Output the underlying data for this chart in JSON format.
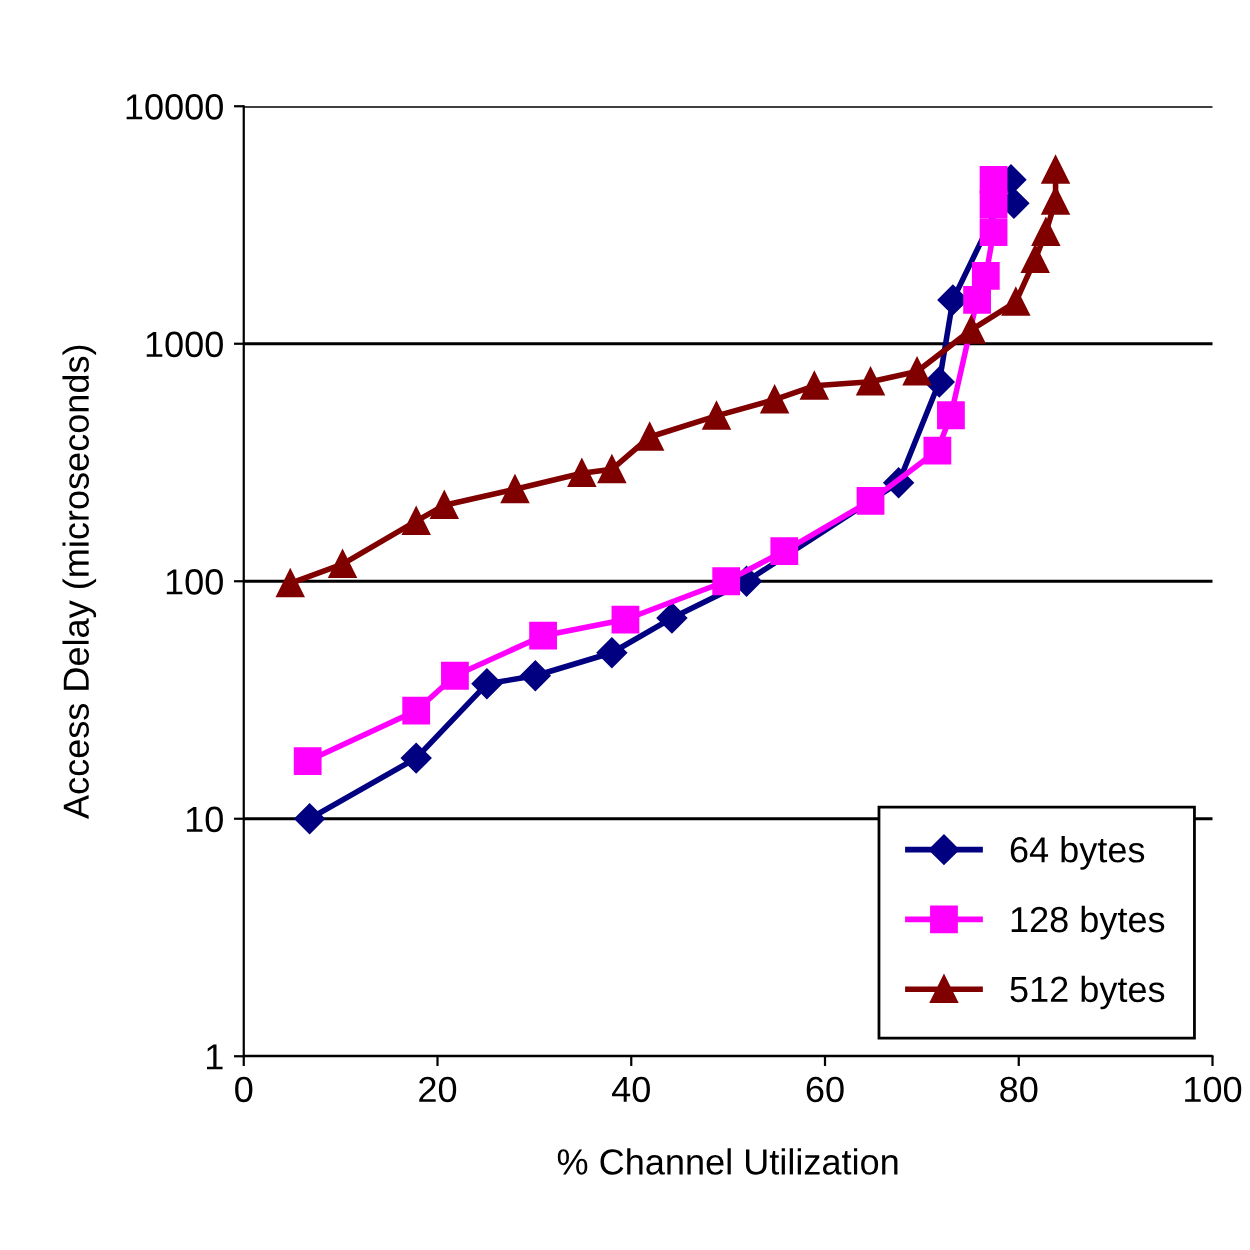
{
  "chart_data": {
    "type": "line",
    "xlabel": "% Channel Utilization",
    "ylabel": "Access Delay (microseconds)",
    "log": "y",
    "xlim": [
      0,
      100
    ],
    "xticks": [
      0,
      20,
      40,
      60,
      80,
      100
    ],
    "ylim": [
      1,
      10000
    ],
    "yticks": [
      1,
      10,
      100,
      1000,
      10000
    ],
    "grid": "y",
    "legend": "bottom right",
    "line_style": "solid",
    "series": [
      {
        "name": "64 bytes",
        "color": "#000080",
        "marker": "diamond",
        "x": [
          6.8,
          17.8,
          25.1,
          30.1,
          38,
          44.2,
          51.9,
          67.6,
          71.8,
          73.2,
          79.2,
          79.5
        ],
        "values": [
          10,
          18,
          37,
          40,
          50,
          70,
          100,
          260,
          690,
          1530,
          4900,
          3900
        ]
      },
      {
        "name": "128 bytes",
        "color": "#ff00ff",
        "marker": "square",
        "x": [
          6.6,
          17.8,
          21.8,
          30.9,
          39.4,
          49.8,
          55.8,
          64.7,
          71.6,
          73,
          75.7,
          76.6,
          77.4,
          77.4,
          77.4
        ],
        "values": [
          17.5,
          28.5,
          40,
          59,
          69,
          100,
          134,
          218,
          355,
          500,
          1530,
          1930,
          2950,
          3870,
          4900
        ]
      },
      {
        "name": "512 bytes",
        "color": "#800000",
        "marker": "triangle",
        "x": [
          4.8,
          10.2,
          17.8,
          20.7,
          28,
          34.9,
          38,
          41.9,
          48.8,
          54.8,
          58.9,
          64.7,
          69.5,
          75.1,
          79.7,
          81.7,
          82.8,
          83.8,
          83.8
        ],
        "values": [
          98,
          118,
          179,
          209,
          244,
          285,
          296,
          405,
          497,
          582,
          665,
          692,
          764,
          1145,
          1500,
          2270,
          2950,
          4000,
          5400
        ]
      }
    ]
  }
}
